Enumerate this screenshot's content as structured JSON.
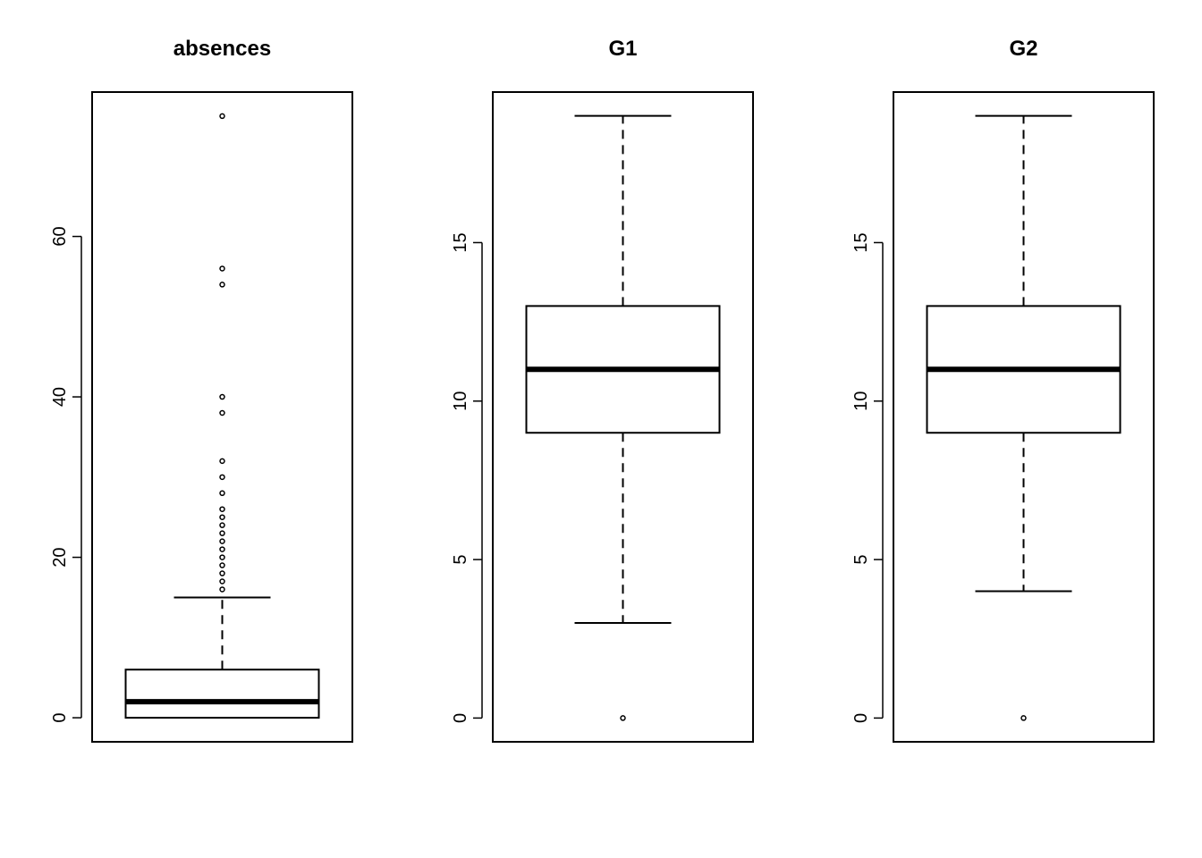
{
  "chart_data": [
    {
      "type": "box",
      "title": "absences",
      "ylim": [
        -3,
        78
      ],
      "y_ticks": [
        0,
        20,
        40,
        60
      ],
      "y_tick_labels": [
        "0",
        "20",
        "40",
        "60"
      ],
      "stats": {
        "whisker_low": 0,
        "q1": 0,
        "median": 2,
        "q3": 6,
        "whisker_high": 15
      },
      "outliers": [
        16,
        17,
        18,
        19,
        20,
        21,
        22,
        23,
        24,
        25,
        26,
        28,
        30,
        32,
        38,
        40,
        54,
        56,
        75
      ]
    },
    {
      "type": "box",
      "title": "G1",
      "ylim": [
        -0.75,
        19.75
      ],
      "y_ticks": [
        0,
        5,
        10,
        15
      ],
      "y_tick_labels": [
        "0",
        "5",
        "10",
        "15"
      ],
      "stats": {
        "whisker_low": 3,
        "q1": 9,
        "median": 11,
        "q3": 13,
        "whisker_high": 19
      },
      "outliers": [
        0
      ]
    },
    {
      "type": "box",
      "title": "G2",
      "ylim": [
        -0.75,
        19.75
      ],
      "y_ticks": [
        0,
        5,
        10,
        15
      ],
      "y_tick_labels": [
        "0",
        "5",
        "10",
        "15"
      ],
      "stats": {
        "whisker_low": 4,
        "q1": 9,
        "median": 11,
        "q3": 13,
        "whisker_high": 19
      },
      "outliers": [
        0
      ]
    }
  ]
}
